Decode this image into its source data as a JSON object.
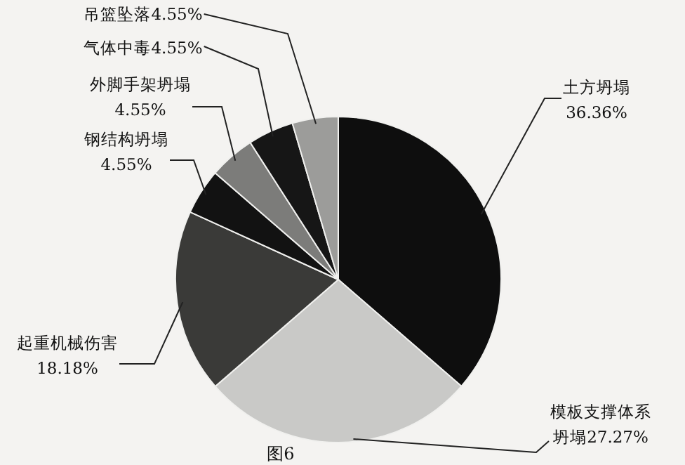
{
  "chart_data": {
    "type": "pie",
    "title": "图6",
    "categories": [
      "土方坍塌",
      "模板支撑体系坍塌",
      "起重机械伤害",
      "钢结构坍塌",
      "外脚手架坍塌",
      "气体中毒",
      "吊篮坠落"
    ],
    "values": [
      36.36,
      27.27,
      18.18,
      4.55,
      4.55,
      4.55,
      4.55
    ],
    "value_labels": [
      "36.36%",
      "27.27%",
      "18.18%",
      "4.55%",
      "4.55%",
      "4.55%",
      "4.55%"
    ],
    "colors": [
      "#0e0e0e",
      "#c9c9c7",
      "#3a3a38",
      "#121212",
      "#7c7c7a",
      "#161616",
      "#9c9c9a"
    ]
  }
}
